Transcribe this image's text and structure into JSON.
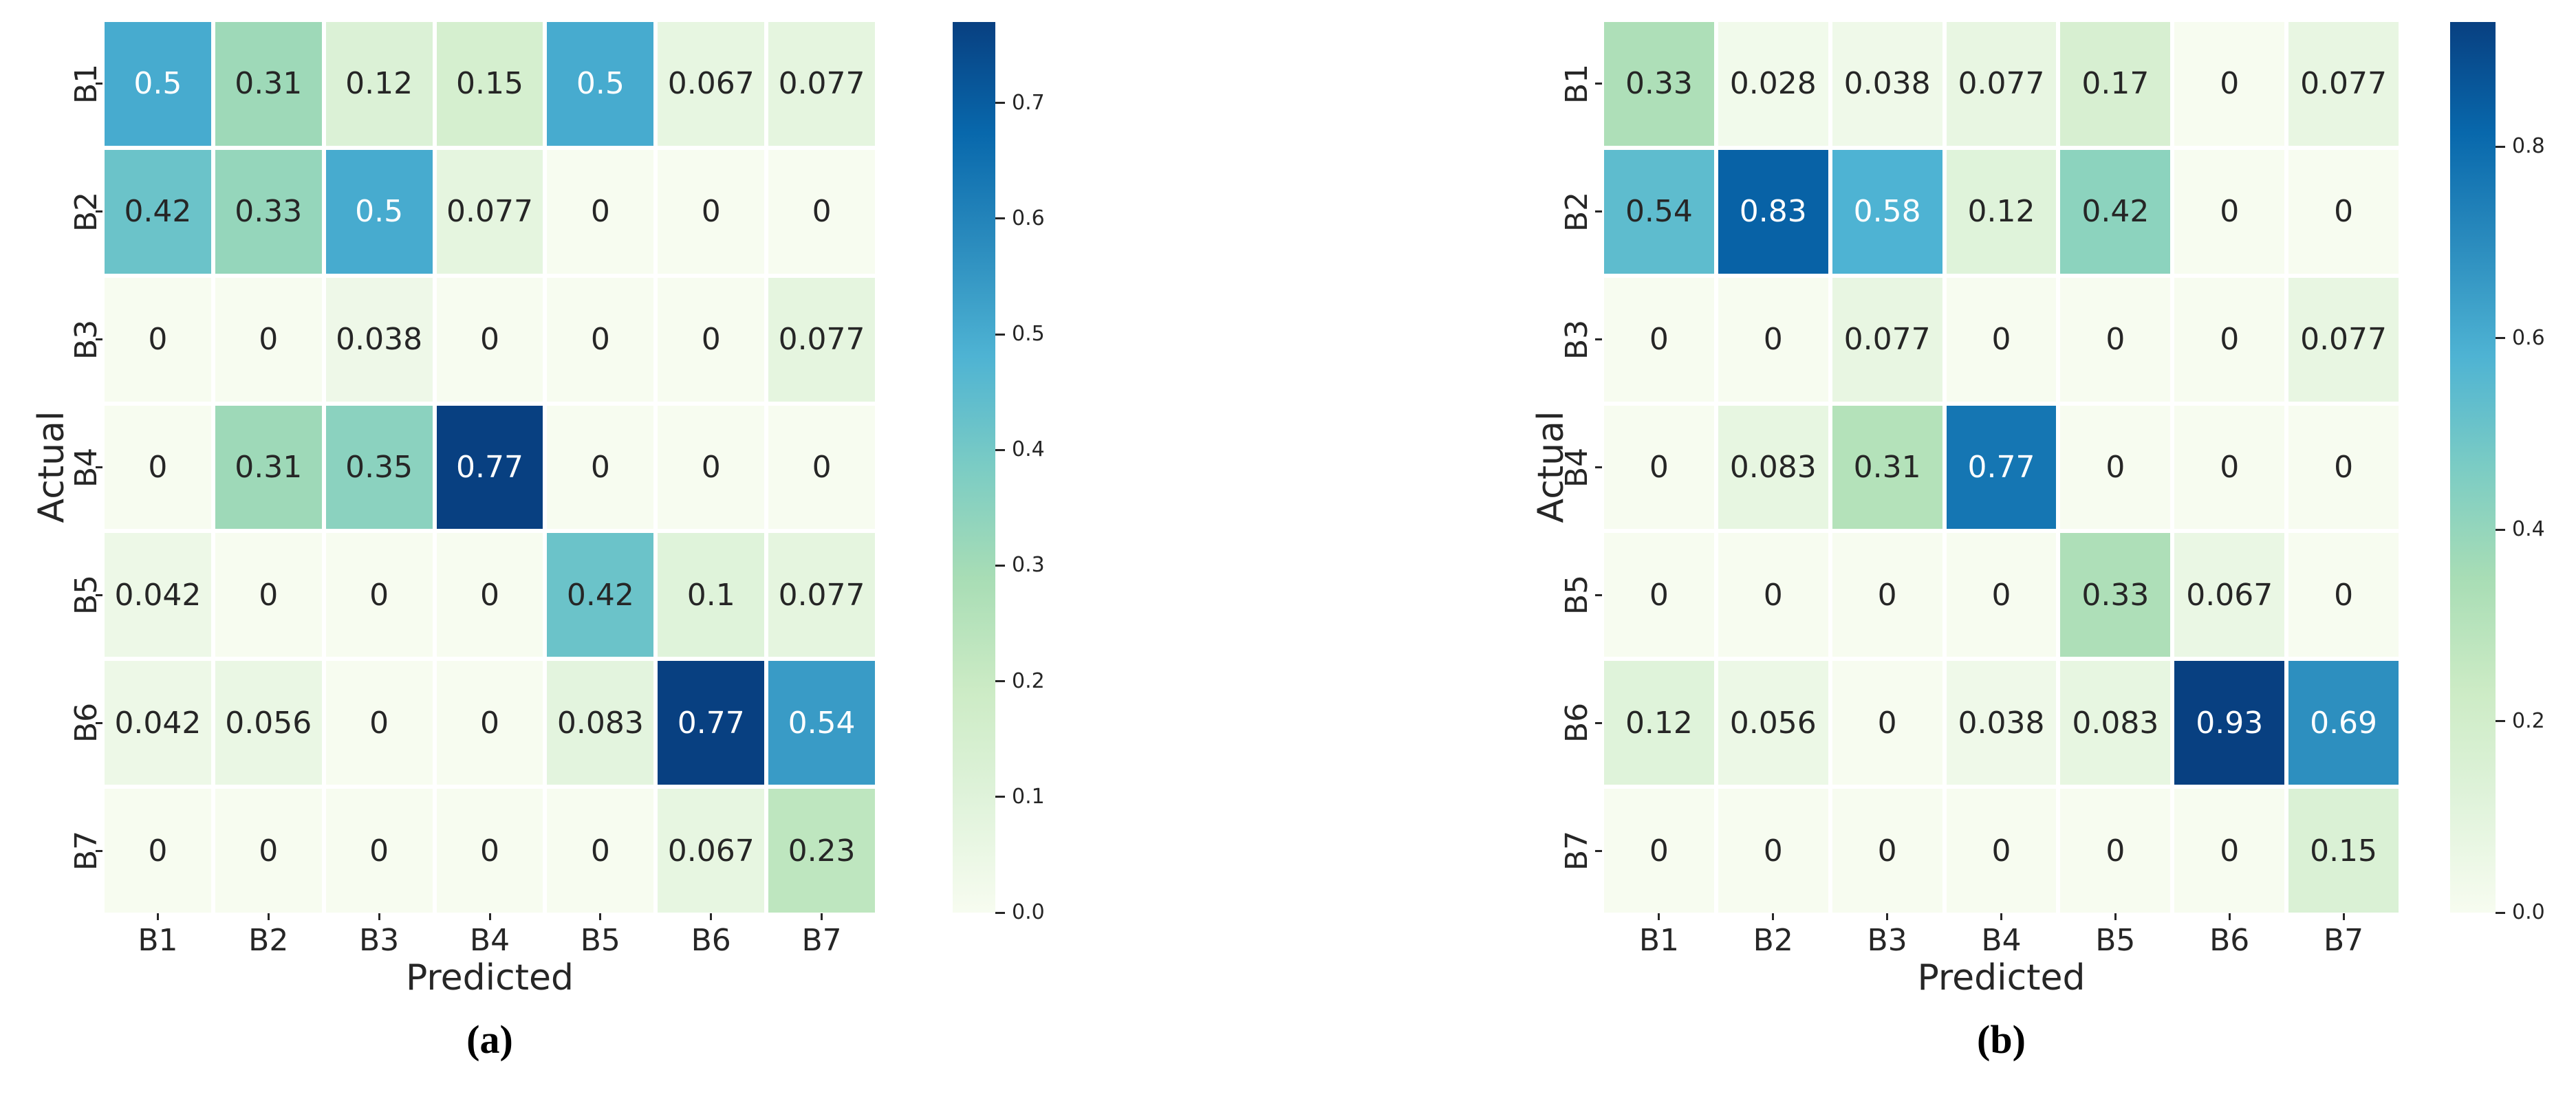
{
  "figure": {
    "background": "#ffffff",
    "annotation_dark_text": "#262626",
    "annotation_light_text": "#ffffff",
    "colormap_name": "GnBu",
    "colormap_anchors": [
      "#f7fcf0",
      "#e0f3db",
      "#ccebc5",
      "#a8ddb5",
      "#7bccc4",
      "#4eb3d3",
      "#2b8cbe",
      "#0868ac",
      "#084081"
    ]
  },
  "chart_data": [
    {
      "type": "heatmap",
      "caption": "(a)",
      "xlabel": "Predicted",
      "ylabel": "Actual",
      "x_categories": [
        "B1",
        "B2",
        "B3",
        "B4",
        "B5",
        "B6",
        "B7"
      ],
      "y_categories": [
        "B1",
        "B2",
        "B3",
        "B4",
        "B5",
        "B6",
        "B7"
      ],
      "colormap": "GnBu",
      "vmin": 0.0,
      "vmax": 0.77,
      "colorbar_ticks": [
        0.0,
        0.1,
        0.2,
        0.3,
        0.4,
        0.5,
        0.6,
        0.7
      ],
      "legend_position": "right-colorbar",
      "grid": "white-gaps",
      "values": [
        [
          0.5,
          0.31,
          0.12,
          0.15,
          0.5,
          0.067,
          0.077
        ],
        [
          0.42,
          0.33,
          0.5,
          0.077,
          0,
          0,
          0
        ],
        [
          0,
          0,
          0.038,
          0,
          0,
          0,
          0.077
        ],
        [
          0,
          0.31,
          0.35,
          0.77,
          0,
          0,
          0
        ],
        [
          0.042,
          0,
          0,
          0,
          0.42,
          0.1,
          0.077
        ],
        [
          0.042,
          0.056,
          0,
          0,
          0.083,
          0.77,
          0.54
        ],
        [
          0,
          0,
          0,
          0,
          0,
          0.067,
          0.23
        ]
      ]
    },
    {
      "type": "heatmap",
      "caption": "(b)",
      "xlabel": "Predicted",
      "ylabel": "Actual",
      "x_categories": [
        "B1",
        "B2",
        "B3",
        "B4",
        "B5",
        "B6",
        "B7"
      ],
      "y_categories": [
        "B1",
        "B2",
        "B3",
        "B4",
        "B5",
        "B6",
        "B7"
      ],
      "colormap": "GnBu",
      "vmin": 0.0,
      "vmax": 0.93,
      "colorbar_ticks": [
        0.0,
        0.2,
        0.4,
        0.6,
        0.8
      ],
      "legend_position": "right-colorbar",
      "grid": "white-gaps",
      "values": [
        [
          0.33,
          0.028,
          0.038,
          0.077,
          0.17,
          0,
          0.077
        ],
        [
          0.54,
          0.83,
          0.58,
          0.12,
          0.42,
          0,
          0
        ],
        [
          0,
          0,
          0.077,
          0,
          0,
          0,
          0.077
        ],
        [
          0,
          0.083,
          0.31,
          0.77,
          0,
          0,
          0
        ],
        [
          0,
          0,
          0,
          0,
          0.33,
          0.067,
          0
        ],
        [
          0.12,
          0.056,
          0,
          0.038,
          0.083,
          0.93,
          0.69
        ],
        [
          0,
          0,
          0,
          0,
          0,
          0,
          0.15
        ]
      ]
    }
  ]
}
